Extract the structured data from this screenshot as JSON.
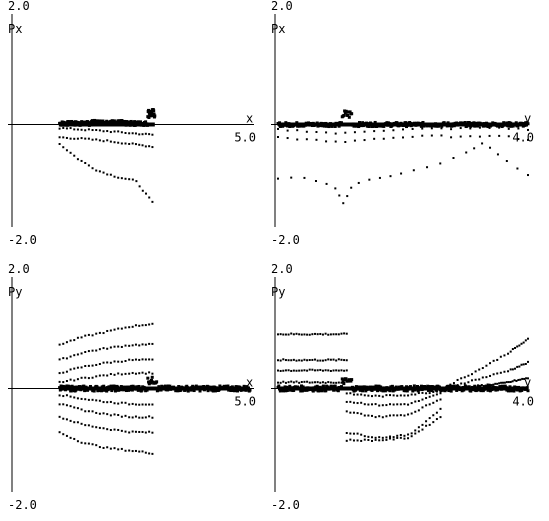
{
  "chart_data": [
    {
      "type": "scatter",
      "title": "",
      "xlabel": "x",
      "ylabel": "Px",
      "xlim": [
        0,
        5.0
      ],
      "ylim": [
        -2.0,
        2.0
      ],
      "y_top_label": "2.0",
      "y_bottom_label": "-2.0",
      "x_tick_label": "5.0",
      "grid": false,
      "x_range_data": [
        1.0,
        3.0
      ],
      "series": [
        {
          "values_y": [
            0.02,
            0.04,
            0.02
          ],
          "peak": {
            "x": 2.95,
            "y": 0.28
          },
          "spread": 0.04,
          "count": 260
        },
        {
          "x": [
            1.0,
            1.5,
            2.0,
            2.5,
            2.95
          ],
          "y": [
            -0.07,
            -0.1,
            -0.13,
            -0.17,
            -0.2
          ]
        },
        {
          "x": [
            1.0,
            1.5,
            2.0,
            2.5,
            2.95
          ],
          "y": [
            -0.25,
            -0.28,
            -0.32,
            -0.38,
            -0.43
          ]
        },
        {
          "x": [
            1.0,
            1.4,
            1.8,
            2.2,
            2.6,
            2.95
          ],
          "y": [
            -0.38,
            -0.68,
            -0.9,
            -1.02,
            -1.1,
            -1.52
          ]
        }
      ]
    },
    {
      "type": "scatter",
      "title": "",
      "xlabel": "y",
      "ylabel": "Px",
      "xlim": [
        0,
        4.0
      ],
      "ylim": [
        -2.0,
        2.0
      ],
      "y_top_label": "2.0",
      "y_bottom_label": "-2.0",
      "x_tick_label": "4.0",
      "grid": false,
      "series": [
        {
          "x": [
            0.0,
            4.0
          ],
          "y": [
            0.0,
            0.0
          ],
          "peak": {
            "x": 1.1,
            "y": 0.28
          },
          "spread": 0.04,
          "count": 320
        },
        {
          "x": [
            0.0,
            0.5,
            1.0,
            1.5,
            2.0,
            2.5,
            3.0,
            3.5,
            4.0
          ],
          "y": [
            -0.1,
            -0.13,
            -0.18,
            -0.12,
            -0.1,
            -0.08,
            -0.08,
            -0.06,
            -0.1
          ]
        },
        {
          "x": [
            0.0,
            0.5,
            1.0,
            1.5,
            2.0,
            2.5,
            3.0,
            3.5,
            4.0
          ],
          "y": [
            -0.25,
            -0.3,
            -0.35,
            -0.28,
            -0.25,
            -0.22,
            -0.25,
            -0.2,
            -0.3
          ]
        },
        {
          "x": [
            0.0,
            0.5,
            0.9,
            1.05,
            1.2,
            1.6,
            2.0,
            2.5,
            3.0,
            3.3,
            3.6,
            4.0
          ],
          "y": [
            -1.05,
            -1.05,
            -1.2,
            -1.55,
            -1.15,
            -1.05,
            -0.95,
            -0.8,
            -0.55,
            -0.35,
            -0.65,
            -1.0
          ]
        }
      ]
    },
    {
      "type": "scatter",
      "title": "",
      "xlabel": "x",
      "ylabel": "Py",
      "xlim": [
        0,
        5.0
      ],
      "ylim": [
        -2.0,
        2.0
      ],
      "y_top_label": "2.0",
      "y_bottom_label": "-2.0",
      "x_tick_label": "5.0",
      "grid": false,
      "series": [
        {
          "x": [
            1.0,
            1.5,
            2.0,
            2.5,
            2.95
          ],
          "y": [
            0.85,
            1.0,
            1.1,
            1.2,
            1.25
          ]
        },
        {
          "x": [
            1.0,
            1.5,
            2.0,
            2.5,
            2.95
          ],
          "y": [
            0.55,
            0.7,
            0.78,
            0.84,
            0.85
          ]
        },
        {
          "x": [
            1.0,
            1.5,
            2.0,
            2.5,
            2.95
          ],
          "y": [
            0.3,
            0.42,
            0.5,
            0.55,
            0.55
          ]
        },
        {
          "x": [
            1.0,
            1.5,
            2.0,
            2.5,
            2.95
          ],
          "y": [
            0.12,
            0.2,
            0.26,
            0.3,
            0.3
          ]
        },
        {
          "x": [
            1.0,
            5.0
          ],
          "y": [
            0.0,
            0.0
          ],
          "peak": {
            "x": 2.95,
            "y": 0.22
          },
          "spread": 0.05,
          "count": 260
        },
        {
          "x": [
            1.0,
            1.5,
            2.0,
            2.5,
            2.95
          ],
          "y": [
            -0.12,
            -0.2,
            -0.26,
            -0.3,
            -0.3
          ]
        },
        {
          "x": [
            1.0,
            1.5,
            2.0,
            2.5,
            2.95
          ],
          "y": [
            -0.3,
            -0.42,
            -0.5,
            -0.55,
            -0.55
          ]
        },
        {
          "x": [
            1.0,
            1.5,
            2.0,
            2.5,
            2.95
          ],
          "y": [
            -0.55,
            -0.7,
            -0.78,
            -0.84,
            -0.85
          ]
        },
        {
          "x": [
            1.0,
            1.5,
            2.0,
            2.5,
            2.95
          ],
          "y": [
            -0.85,
            -1.05,
            -1.15,
            -1.2,
            -1.25
          ]
        }
      ]
    },
    {
      "type": "scatter",
      "title": "",
      "xlabel": "y",
      "ylabel": "Py",
      "xlim": [
        0,
        4.0
      ],
      "ylim": [
        -2.0,
        2.0
      ],
      "y_top_label": "2.0",
      "y_bottom_label": "-2.0",
      "x_tick_label": "4.0",
      "grid": false,
      "series": [
        {
          "x": [
            0.0,
            1.1
          ],
          "y": [
            1.05,
            1.05
          ]
        },
        {
          "x": [
            0.0,
            1.1
          ],
          "y": [
            0.55,
            0.55
          ]
        },
        {
          "x": [
            0.0,
            1.1
          ],
          "y": [
            0.35,
            0.35
          ]
        },
        {
          "x": [
            0.0,
            1.1
          ],
          "y": [
            0.12,
            0.12
          ]
        },
        {
          "x": [
            0.0,
            4.0
          ],
          "y": [
            0.0,
            0.0
          ],
          "peak": {
            "x": 1.1,
            "y": 0.2
          },
          "spread": 0.05,
          "count": 320
        },
        {
          "x": [
            1.1,
            1.6,
            2.1,
            2.6
          ],
          "y": [
            -0.1,
            -0.15,
            -0.12,
            -0.05
          ]
        },
        {
          "x": [
            1.1,
            1.6,
            2.1,
            2.6
          ],
          "y": [
            -0.25,
            -0.32,
            -0.3,
            -0.1
          ]
        },
        {
          "x": [
            1.1,
            1.6,
            2.1,
            2.6
          ],
          "y": [
            -0.45,
            -0.55,
            -0.5,
            -0.2
          ]
        },
        {
          "x": [
            1.1,
            1.6,
            2.1,
            2.6
          ],
          "y": [
            -0.85,
            -0.95,
            -0.9,
            -0.4
          ]
        },
        {
          "x": [
            1.1,
            1.6,
            2.1,
            2.6
          ],
          "y": [
            -1.0,
            -1.0,
            -0.95,
            -0.55
          ]
        },
        {
          "x": [
            2.7,
            3.2,
            3.7,
            4.0
          ],
          "y": [
            0.05,
            0.35,
            0.7,
            0.95
          ]
        },
        {
          "x": [
            2.7,
            3.2,
            3.7,
            4.0
          ],
          "y": [
            0.02,
            0.18,
            0.35,
            0.5
          ]
        },
        {
          "x": [
            3.2,
            3.6,
            4.0
          ],
          "y": [
            0.05,
            0.1,
            0.2
          ]
        }
      ]
    }
  ]
}
